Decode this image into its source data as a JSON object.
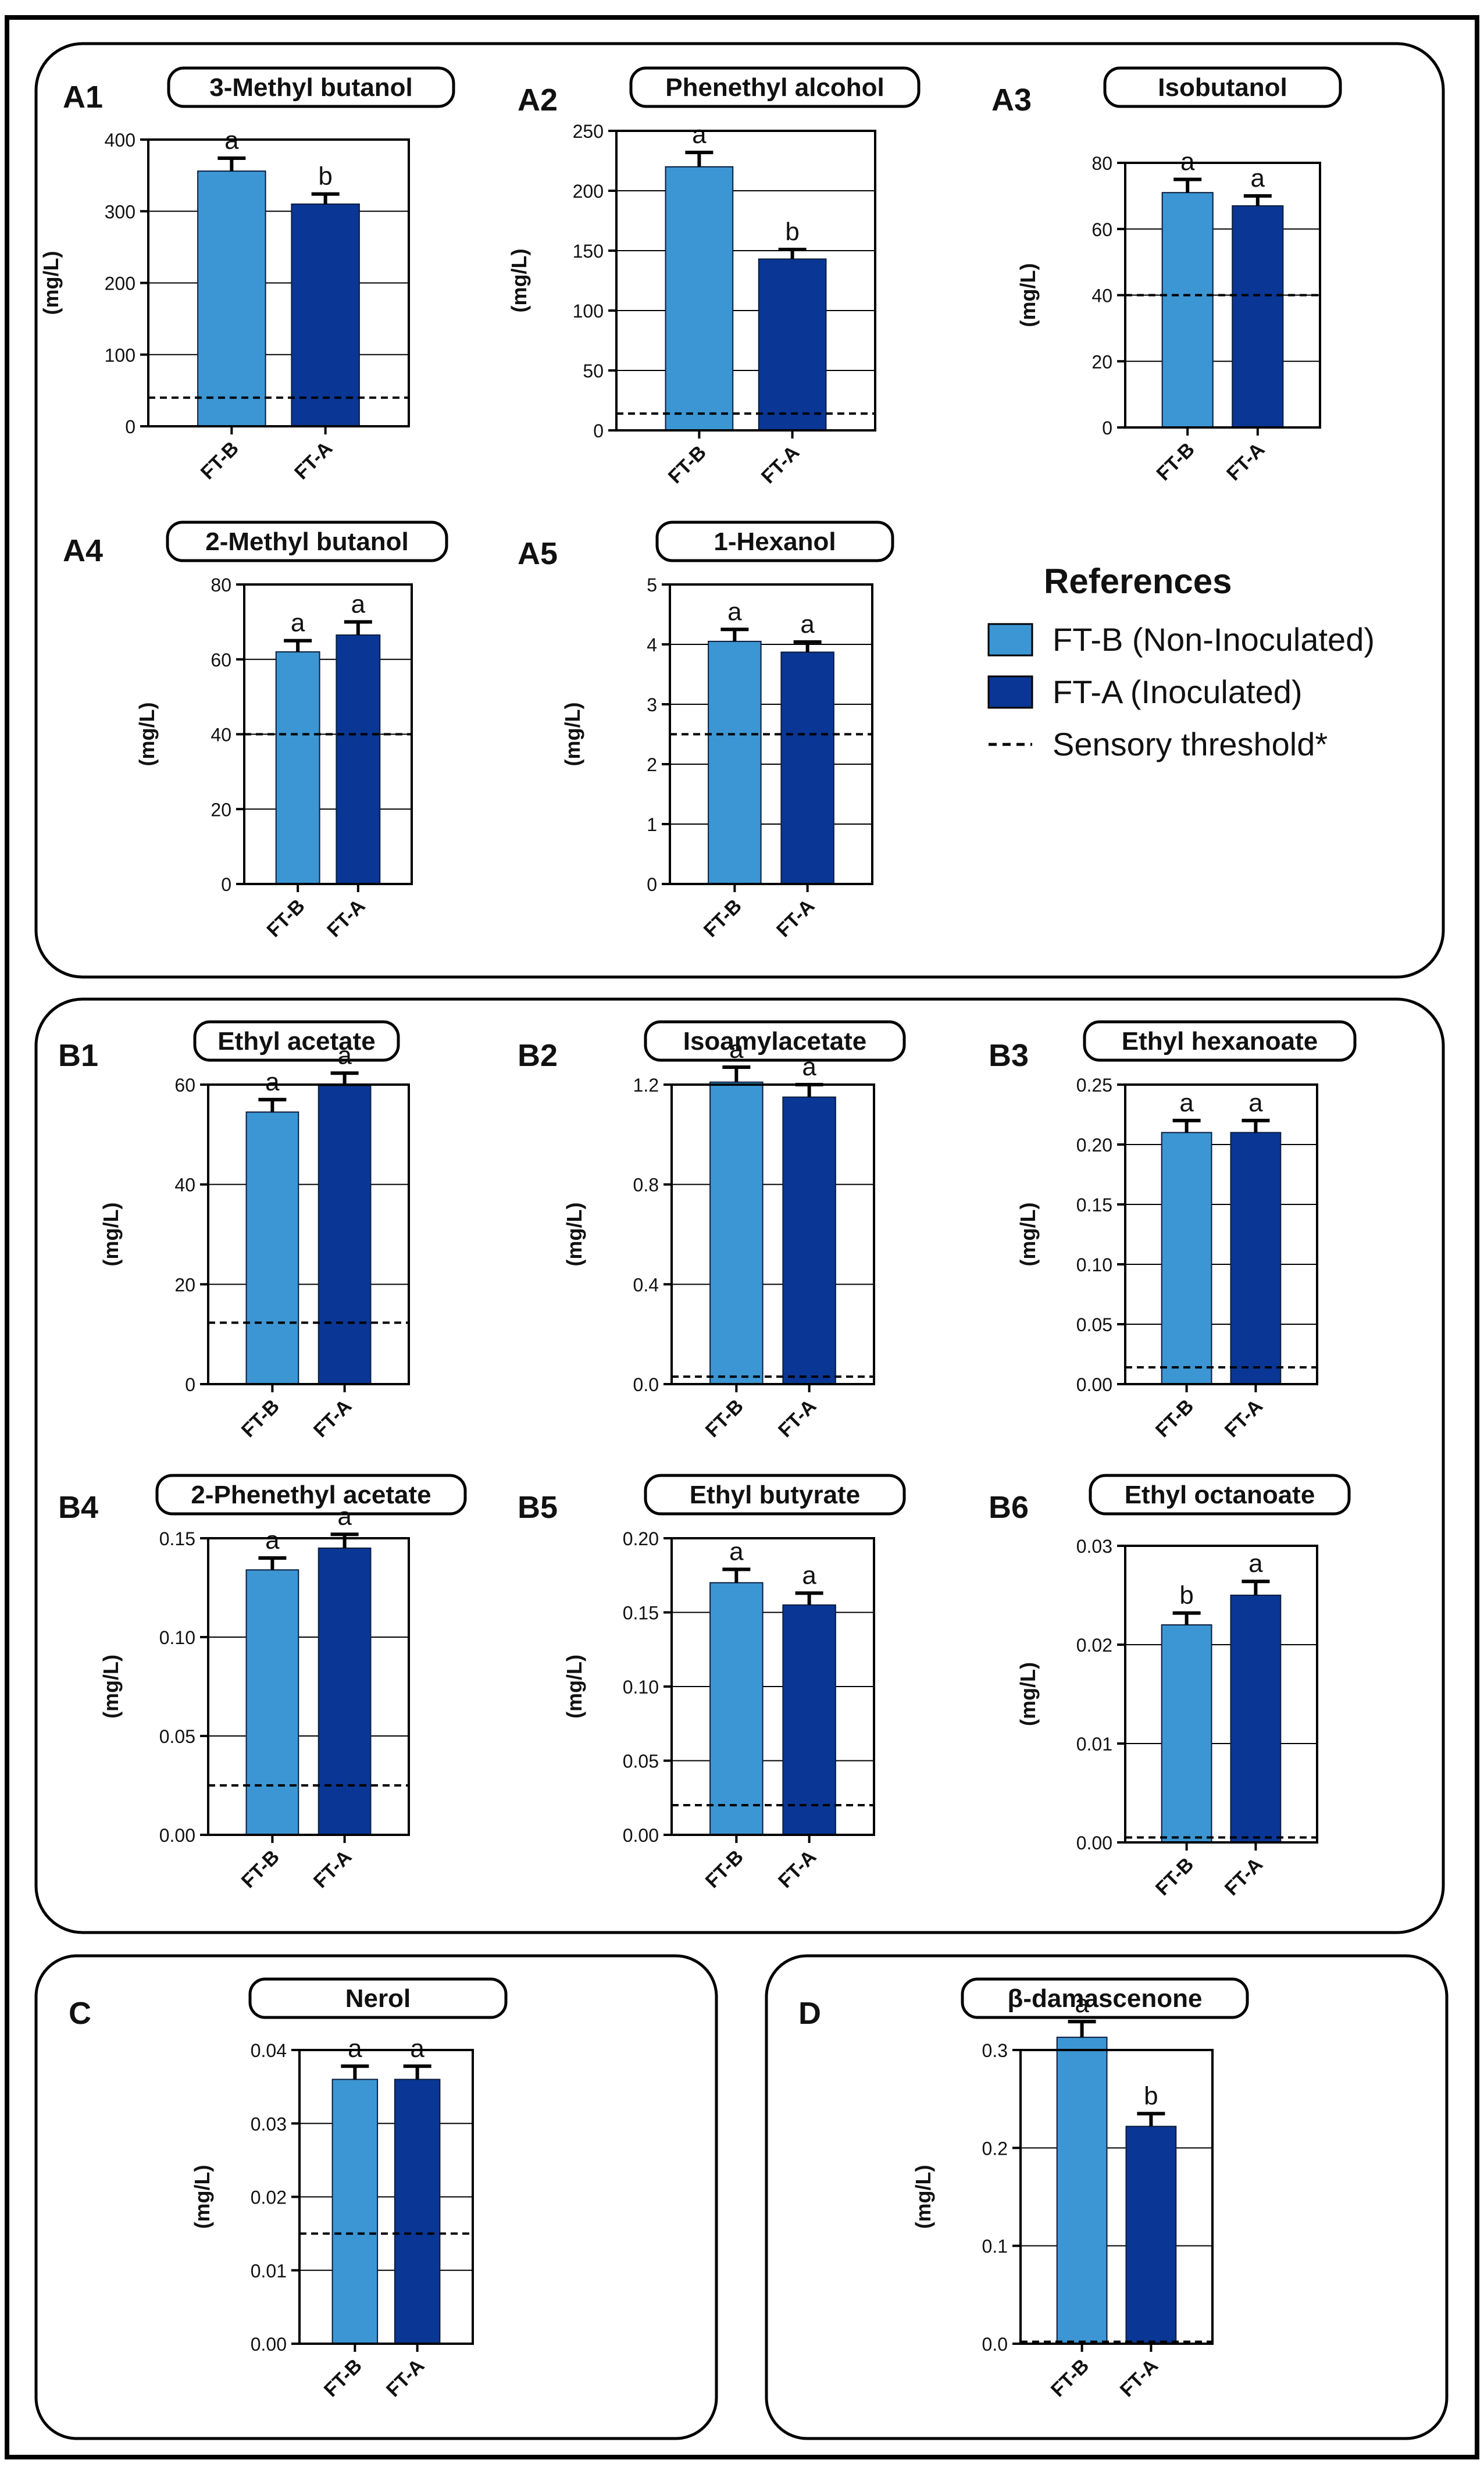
{
  "colors": {
    "ftb": "#3c96d3",
    "fta": "#0a3795",
    "frame": "#000000"
  },
  "legend": {
    "title": "References",
    "items": [
      {
        "label": "FT-B (Non-Inoculated)",
        "color": "#3c96d3",
        "kind": "box"
      },
      {
        "label": "FT-A (Inoculated)",
        "color": "#0a3795",
        "kind": "box"
      },
      {
        "label": "Sensory threshold*",
        "color": "#000000",
        "kind": "dash"
      }
    ]
  },
  "chart_data": [
    {
      "id": "A1",
      "type": "bar",
      "title": "3-Methyl butanol",
      "ylabel": "(mg/L)",
      "categories": [
        "FT-B",
        "FT-A"
      ],
      "values": [
        356,
        310
      ],
      "errors": [
        18,
        14
      ],
      "letters": [
        "a",
        "b"
      ],
      "ylim": [
        0,
        400
      ],
      "ticks": [
        "0",
        "100",
        "200",
        "300",
        "400"
      ],
      "threshold": 40
    },
    {
      "id": "A2",
      "type": "bar",
      "title": "Phenethyl alcohol",
      "ylabel": "(mg/L)",
      "categories": [
        "FT-B",
        "FT-A"
      ],
      "values": [
        220,
        143
      ],
      "errors": [
        12,
        8
      ],
      "letters": [
        "a",
        "b"
      ],
      "ylim": [
        0,
        250
      ],
      "ticks": [
        "0",
        "50",
        "100",
        "150",
        "200",
        "250"
      ],
      "threshold": 14
    },
    {
      "id": "A3",
      "type": "bar",
      "title": "Isobutanol",
      "ylabel": "(mg/L)",
      "categories": [
        "FT-B",
        "FT-A"
      ],
      "values": [
        71,
        67
      ],
      "errors": [
        4,
        3
      ],
      "letters": [
        "a",
        "a"
      ],
      "ylim": [
        0,
        80
      ],
      "ticks": [
        "0",
        "20",
        "40",
        "60",
        "80"
      ],
      "threshold": 40
    },
    {
      "id": "A4",
      "type": "bar",
      "title": "2-Methyl butanol",
      "ylabel": "(mg/L)",
      "categories": [
        "FT-B",
        "FT-A"
      ],
      "values": [
        62,
        66.5
      ],
      "errors": [
        3,
        3.5
      ],
      "letters": [
        "a",
        "a"
      ],
      "ylim": [
        0,
        80
      ],
      "ticks": [
        "0",
        "20",
        "40",
        "60",
        "80"
      ],
      "threshold": 40
    },
    {
      "id": "A5",
      "type": "bar",
      "title": "1-Hexanol",
      "ylabel": "(mg/L)",
      "categories": [
        "FT-B",
        "FT-A"
      ],
      "values": [
        4.05,
        3.87
      ],
      "errors": [
        0.2,
        0.17
      ],
      "letters": [
        "a",
        "a"
      ],
      "ylim": [
        0,
        5
      ],
      "ticks": [
        "0",
        "1",
        "2",
        "3",
        "4",
        "5"
      ],
      "threshold": 2.5
    },
    {
      "id": "B1",
      "type": "bar",
      "title": "Ethyl acetate",
      "ylabel": "(mg/L)",
      "categories": [
        "FT-B",
        "FT-A"
      ],
      "values": [
        54.5,
        59.8
      ],
      "errors": [
        2.5,
        2.5
      ],
      "letters": [
        "a",
        "a"
      ],
      "ylim": [
        0,
        60
      ],
      "ticks": [
        "0",
        "20",
        "40",
        "60"
      ],
      "threshold": 12.3
    },
    {
      "id": "B2",
      "type": "bar",
      "title": "Isoamylacetate",
      "ylabel": "(mg/L)",
      "categories": [
        "FT-B",
        "FT-A"
      ],
      "values": [
        1.21,
        1.15
      ],
      "errors": [
        0.06,
        0.05
      ],
      "letters": [
        "a",
        "a"
      ],
      "ylim": [
        0,
        1.2
      ],
      "ticks": [
        "0.0",
        "0.4",
        "0.8",
        "1.2"
      ],
      "threshold": 0.03
    },
    {
      "id": "B3",
      "type": "bar",
      "title": "Ethyl hexanoate",
      "ylabel": "(mg/L)",
      "categories": [
        "FT-B",
        "FT-A"
      ],
      "values": [
        0.21,
        0.21
      ],
      "errors": [
        0.01,
        0.01
      ],
      "letters": [
        "a",
        "a"
      ],
      "ylim": [
        0,
        0.25
      ],
      "ticks": [
        "0.00",
        "0.05",
        "0.10",
        "0.15",
        "0.20",
        "0.25"
      ],
      "threshold": 0.014
    },
    {
      "id": "B4",
      "type": "bar",
      "title": "2-Phenethyl acetate",
      "ylabel": "(mg/L)",
      "categories": [
        "FT-B",
        "FT-A"
      ],
      "values": [
        0.134,
        0.145
      ],
      "errors": [
        0.006,
        0.007
      ],
      "letters": [
        "a",
        "a"
      ],
      "ylim": [
        0,
        0.15
      ],
      "ticks": [
        "0.00",
        "0.05",
        "0.10",
        "0.15"
      ],
      "threshold": 0.025
    },
    {
      "id": "B5",
      "type": "bar",
      "title": "Ethyl butyrate",
      "ylabel": "(mg/L)",
      "categories": [
        "FT-B",
        "FT-A"
      ],
      "values": [
        0.17,
        0.155
      ],
      "errors": [
        0.009,
        0.008
      ],
      "letters": [
        "a",
        "a"
      ],
      "ylim": [
        0,
        0.2
      ],
      "ticks": [
        "0.00",
        "0.05",
        "0.10",
        "0.15",
        "0.20"
      ],
      "threshold": 0.02
    },
    {
      "id": "B6",
      "type": "bar",
      "title": "Ethyl octanoate",
      "ylabel": "(mg/L)",
      "categories": [
        "FT-B",
        "FT-A"
      ],
      "values": [
        0.022,
        0.025
      ],
      "errors": [
        0.0012,
        0.0014
      ],
      "letters": [
        "b",
        "a"
      ],
      "ylim": [
        0,
        0.03
      ],
      "ticks": [
        "0.00",
        "0.01",
        "0.02",
        "0.03"
      ],
      "threshold": 0.0005
    },
    {
      "id": "C",
      "type": "bar",
      "title": "Nerol",
      "ylabel": "(mg/L)",
      "categories": [
        "FT-B",
        "FT-A"
      ],
      "values": [
        0.036,
        0.036
      ],
      "errors": [
        0.0018,
        0.0018
      ],
      "letters": [
        "a",
        "a"
      ],
      "ylim": [
        0,
        0.04
      ],
      "ticks": [
        "0.00",
        "0.01",
        "0.02",
        "0.03",
        "0.04"
      ],
      "threshold": 0.015
    },
    {
      "id": "D",
      "type": "bar",
      "title": "β-damascenone",
      "ylabel": "(mg/L)",
      "categories": [
        "FT-B",
        "FT-A"
      ],
      "values": [
        0.313,
        0.222
      ],
      "errors": [
        0.016,
        0.013
      ],
      "letters": [
        "a",
        "b"
      ],
      "ylim": [
        0,
        0.3
      ],
      "ticks": [
        "0.0",
        "0.1",
        "0.2",
        "0.3"
      ],
      "threshold": 0.002
    }
  ]
}
